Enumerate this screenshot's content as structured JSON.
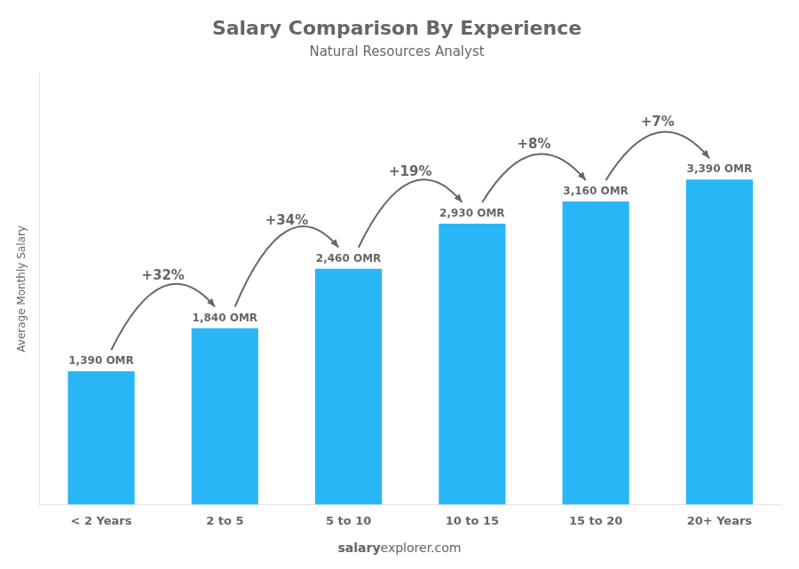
{
  "chart_data": {
    "type": "bar",
    "title": "Salary Comparison By Experience",
    "subtitle": "Natural Resources Analyst",
    "categories": [
      "< 2 Years",
      "2 to 5",
      "5 to 10",
      "10 to 15",
      "15 to 20",
      "20+ Years"
    ],
    "values": [
      1390,
      1840,
      2460,
      2930,
      3160,
      3390
    ],
    "value_labels": [
      "1,390 OMR",
      "1,840 OMR",
      "2,460 OMR",
      "2,930 OMR",
      "3,160 OMR",
      "3,390 OMR"
    ],
    "data_labels": true,
    "annotations": [
      "+32%",
      "+34%",
      "+19%",
      "+8%",
      "+7%"
    ],
    "color": "#29b6f6",
    "ylim": [
      0,
      4500
    ],
    "ylabel": "Average Monthly Salary",
    "footer": [
      "salary",
      "explorer.com"
    ],
    "grid": false,
    "tick_labels": "x"
  }
}
